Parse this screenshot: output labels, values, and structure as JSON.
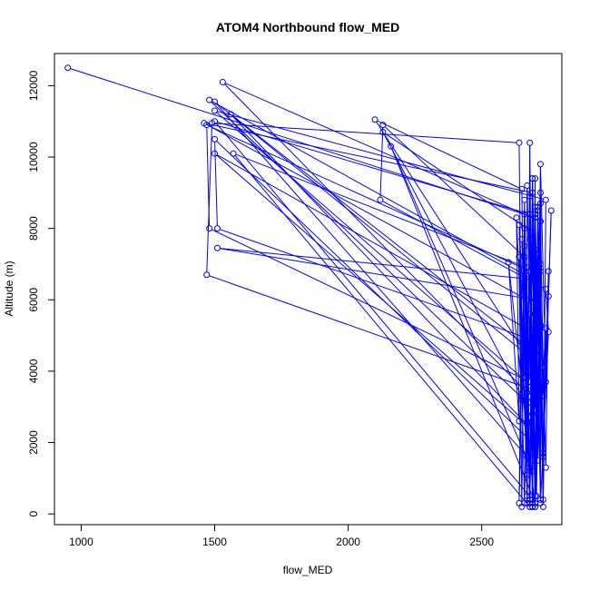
{
  "chart_data": {
    "type": "line",
    "title": "ATOM4 Northbound flow_MED",
    "xlabel": "flow_MED",
    "ylabel": "Altitude (m)",
    "xlim": [
      900,
      2800
    ],
    "ylim": [
      -300,
      12900
    ],
    "xticks": [
      1000,
      1500,
      2000,
      2500
    ],
    "yticks": [
      0,
      2000,
      4000,
      6000,
      8000,
      10000,
      12000
    ],
    "grid": false,
    "legend": "none",
    "marker": "open-circle",
    "color": "#0000ff",
    "series": [
      {
        "points": [
          [
            950,
            12500
          ],
          [
            2700,
            8300
          ],
          [
            2680,
            400
          ],
          [
            2650,
            7700
          ],
          [
            2690,
            3200
          ],
          [
            2700,
            9400
          ],
          [
            2705,
            500
          ],
          [
            2720,
            7000
          ],
          [
            2690,
            1500
          ],
          [
            2680,
            10400
          ],
          [
            2670,
            300
          ],
          [
            2660,
            5200
          ],
          [
            2640,
            8100
          ],
          [
            2670,
            500
          ],
          [
            2670,
            9200
          ],
          [
            2690,
            2800
          ],
          [
            2700,
            8600
          ],
          [
            2710,
            2100
          ],
          [
            2720,
            6800
          ],
          [
            2700,
            300
          ],
          [
            2680,
            8900
          ],
          [
            2690,
            3900
          ],
          [
            2700,
            300
          ],
          [
            2710,
            7300
          ],
          [
            2730,
            200
          ],
          [
            2740,
            5200
          ],
          [
            2720,
            2800
          ],
          [
            2700,
            8400
          ],
          [
            2690,
            200
          ],
          [
            2680,
            6800
          ],
          [
            1470,
            10900
          ],
          [
            1480,
            8000
          ],
          [
            2680,
            3700
          ],
          [
            2690,
            9400
          ],
          [
            2700,
            5600
          ],
          [
            2690,
            1700
          ],
          [
            2720,
            8200
          ],
          [
            1530,
            12100
          ],
          [
            2670,
            3400
          ],
          [
            2660,
            7500
          ],
          [
            2640,
            300
          ],
          [
            2650,
            6600
          ],
          [
            1510,
            7450
          ],
          [
            2700,
            6000
          ],
          [
            2710,
            2200
          ],
          [
            1500,
            10100
          ],
          [
            2690,
            5100
          ],
          [
            2680,
            200
          ],
          [
            2660,
            8400
          ],
          [
            2670,
            2500
          ],
          [
            1560,
            11200
          ],
          [
            2700,
            4500
          ],
          [
            2720,
            8700
          ],
          [
            2720,
            400
          ],
          [
            2700,
            6700
          ],
          [
            2690,
            2000
          ],
          [
            1500,
            10500
          ],
          [
            1510,
            8000
          ],
          [
            2680,
            4900
          ],
          [
            2690,
            1200
          ],
          [
            2160,
            10300
          ],
          [
            2700,
            300
          ],
          [
            2710,
            8500
          ],
          [
            2730,
            3300
          ],
          [
            1500,
            11300
          ],
          [
            2740,
            8800
          ],
          [
            2730,
            400
          ],
          [
            2720,
            5300
          ],
          [
            2710,
            1500
          ],
          [
            2690,
            7900
          ],
          [
            2130,
            10700
          ],
          [
            2650,
            3300
          ],
          [
            2660,
            6500
          ],
          [
            2680,
            200
          ],
          [
            1570,
            10100
          ],
          [
            2670,
            6900
          ],
          [
            2660,
            3800
          ],
          [
            2650,
            9100
          ],
          [
            2100,
            11050
          ],
          [
            2690,
            4200
          ],
          [
            2700,
            7000
          ],
          [
            2690,
            400
          ],
          [
            1500,
            11000
          ],
          [
            2680,
            8400
          ],
          [
            2670,
            2600
          ],
          [
            2660,
            7200
          ],
          [
            2130,
            10900
          ],
          [
            2120,
            8800
          ],
          [
            2740,
            6300
          ],
          [
            2750,
            5100
          ],
          [
            2720,
            300
          ],
          [
            2710,
            6500
          ],
          [
            1480,
            11600
          ],
          [
            2700,
            2900
          ],
          [
            2690,
            9400
          ],
          [
            2680,
            300
          ],
          [
            2670,
            6000
          ],
          [
            1460,
            10950
          ],
          [
            2690,
            9000
          ],
          [
            2700,
            200
          ],
          [
            2600,
            7050
          ],
          [
            2640,
            2600
          ],
          [
            2630,
            8300
          ],
          [
            2670,
            1600
          ],
          [
            1500,
            11550
          ],
          [
            2680,
            4400
          ],
          [
            2690,
            7400
          ],
          [
            2700,
            500
          ],
          [
            2710,
            8600
          ],
          [
            2720,
            3400
          ],
          [
            1470,
            6700
          ],
          [
            1490,
            10950
          ],
          [
            2640,
            10400
          ],
          [
            2650,
            3200
          ],
          [
            2660,
            8800
          ],
          [
            2680,
            1300
          ],
          [
            2720,
            8200
          ],
          [
            2730,
            4100
          ],
          [
            2740,
            1300
          ],
          [
            2750,
            6800
          ],
          [
            2730,
            1700
          ],
          [
            2720,
            9000
          ],
          [
            2710,
            2000
          ],
          [
            2700,
            7400
          ],
          [
            2690,
            200
          ],
          [
            2680,
            5600
          ],
          [
            2670,
            1100
          ],
          [
            2660,
            8000
          ],
          [
            2650,
            200
          ],
          [
            2640,
            7200
          ],
          [
            2660,
            300
          ],
          [
            2680,
            7700
          ],
          [
            2700,
            200
          ],
          [
            2710,
            6300
          ],
          [
            2730,
            1600
          ],
          [
            2760,
            8500
          ],
          [
            2750,
            6100
          ],
          [
            2740,
            3700
          ],
          [
            2720,
            9800
          ],
          [
            2700,
            300
          ]
        ]
      }
    ]
  }
}
